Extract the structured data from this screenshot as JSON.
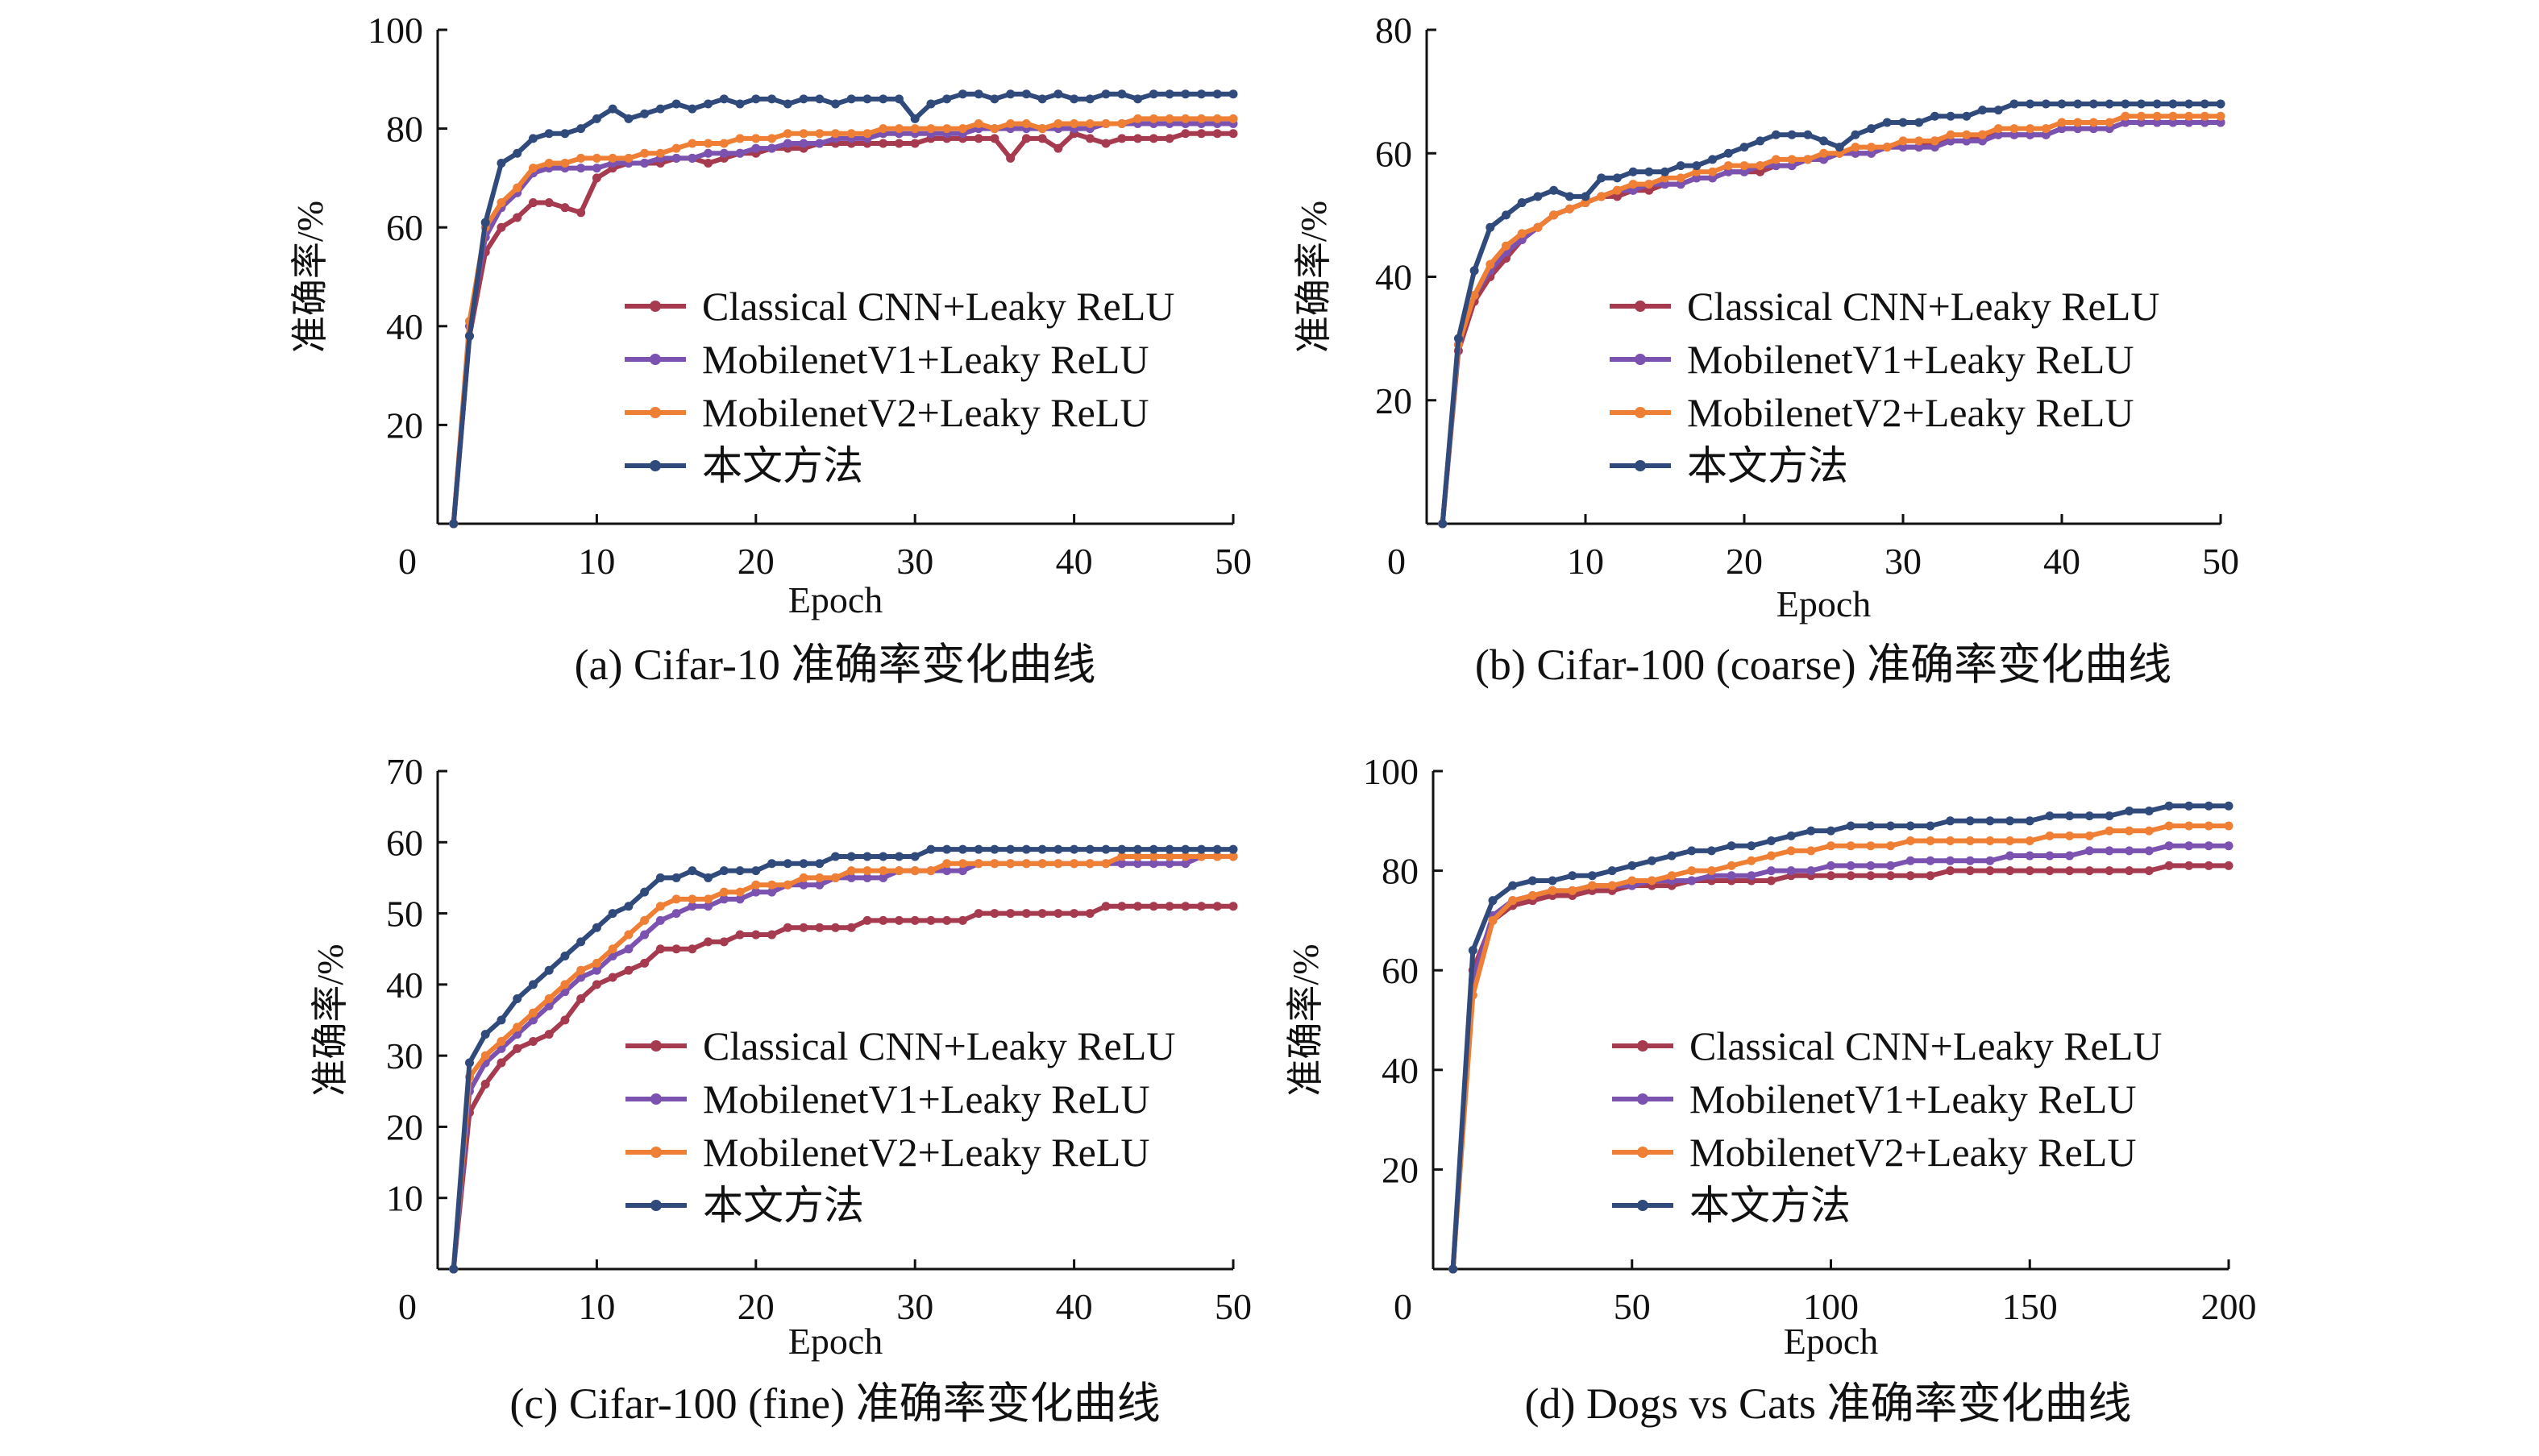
{
  "colors": {
    "classical": "#a63a4f",
    "v1": "#7b52b0",
    "v2": "#ee7f35",
    "ours": "#304a7c"
  },
  "series_names": [
    "Classical CNN+Leaky ReLU",
    "MobilenetV1+Leaky ReLU",
    "MobilenetV2+Leaky ReLU",
    "本文方法"
  ],
  "chart_data": [
    {
      "type": "line",
      "caption": "(a) Cifar-10 准确率变化曲线",
      "xlabel": "Epoch",
      "ylabel": "准确率/%",
      "xlim": [
        0,
        50
      ],
      "ylim": [
        0,
        100
      ],
      "xticks": [
        0,
        10,
        20,
        30,
        40,
        50
      ],
      "yticks": [
        20,
        40,
        60,
        80,
        100
      ],
      "x_start": 1,
      "x_step": 1,
      "legend_position": "center-right",
      "series": [
        {
          "name": "Classical CNN+Leaky ReLU",
          "key": "classical",
          "values": [
            0,
            38,
            55,
            60,
            62,
            65,
            65,
            64,
            63,
            70,
            72,
            73,
            73,
            73,
            74,
            74,
            73,
            74,
            75,
            75,
            76,
            76,
            76,
            77,
            77,
            77,
            77,
            77,
            77,
            77,
            78,
            78,
            78,
            78,
            78,
            74,
            78,
            78,
            76,
            79,
            78,
            77,
            78,
            78,
            78,
            78,
            79,
            79,
            79,
            79
          ]
        },
        {
          "name": "MobilenetV1+Leaky ReLU",
          "key": "v1",
          "values": [
            0,
            40,
            58,
            64,
            67,
            71,
            72,
            72,
            72,
            72,
            73,
            73,
            73,
            74,
            74,
            74,
            75,
            75,
            75,
            76,
            76,
            77,
            77,
            77,
            78,
            78,
            78,
            79,
            79,
            79,
            79,
            79,
            79,
            80,
            80,
            80,
            80,
            80,
            80,
            80,
            80,
            81,
            81,
            81,
            81,
            81,
            81,
            81,
            81,
            81
          ]
        },
        {
          "name": "MobilenetV2+Leaky ReLU",
          "key": "v2",
          "values": [
            0,
            41,
            60,
            65,
            68,
            72,
            73,
            73,
            74,
            74,
            74,
            74,
            75,
            75,
            76,
            77,
            77,
            77,
            78,
            78,
            78,
            79,
            79,
            79,
            79,
            79,
            79,
            80,
            80,
            80,
            80,
            80,
            80,
            81,
            80,
            81,
            81,
            80,
            81,
            81,
            81,
            81,
            81,
            82,
            82,
            82,
            82,
            82,
            82,
            82
          ]
        },
        {
          "name": "本文方法",
          "key": "ours",
          "values": [
            0,
            38,
            61,
            73,
            75,
            78,
            79,
            79,
            80,
            82,
            84,
            82,
            83,
            84,
            85,
            84,
            85,
            86,
            85,
            86,
            86,
            85,
            86,
            86,
            85,
            86,
            86,
            86,
            86,
            82,
            85,
            86,
            87,
            87,
            86,
            87,
            87,
            86,
            87,
            86,
            86,
            87,
            87,
            86,
            87,
            87,
            87,
            87,
            87,
            87
          ]
        }
      ]
    },
    {
      "type": "line",
      "caption": "(b) Cifar-100 (coarse) 准确率变化曲线",
      "xlabel": "Epoch",
      "ylabel": "准确率/%",
      "xlim": [
        0,
        50
      ],
      "ylim": [
        0,
        80
      ],
      "xticks": [
        0,
        10,
        20,
        30,
        40,
        50
      ],
      "yticks": [
        20,
        40,
        60,
        80
      ],
      "x_start": 1,
      "x_step": 1,
      "legend_position": "center-right",
      "series": [
        {
          "name": "Classical CNN+Leaky ReLU",
          "key": "classical",
          "values": [
            0,
            28,
            36,
            40,
            43,
            46,
            48,
            50,
            51,
            52,
            53,
            53,
            54,
            54,
            55,
            55,
            56,
            56,
            57,
            57,
            57,
            58,
            58,
            59,
            59,
            60,
            60,
            60,
            61,
            61,
            61,
            62,
            62,
            62,
            63,
            63,
            63,
            63,
            63,
            64,
            64,
            64,
            64,
            65,
            65,
            65,
            65,
            65,
            65,
            65
          ]
        },
        {
          "name": "MobilenetV1+Leaky ReLU",
          "key": "v1",
          "values": [
            0,
            29,
            37,
            41,
            44,
            46,
            48,
            50,
            51,
            52,
            53,
            54,
            54,
            55,
            55,
            55,
            56,
            56,
            57,
            57,
            58,
            58,
            58,
            59,
            59,
            60,
            60,
            60,
            61,
            61,
            61,
            61,
            62,
            62,
            62,
            63,
            63,
            63,
            63,
            64,
            64,
            64,
            64,
            65,
            65,
            65,
            65,
            65,
            65,
            65
          ]
        },
        {
          "name": "MobilenetV2+Leaky ReLU",
          "key": "v2",
          "values": [
            0,
            29,
            37,
            42,
            45,
            47,
            48,
            50,
            51,
            52,
            53,
            54,
            55,
            55,
            56,
            56,
            57,
            57,
            58,
            58,
            58,
            59,
            59,
            59,
            60,
            60,
            61,
            61,
            61,
            62,
            62,
            62,
            63,
            63,
            63,
            64,
            64,
            64,
            64,
            65,
            65,
            65,
            65,
            66,
            66,
            66,
            66,
            66,
            66,
            66
          ]
        },
        {
          "name": "本文方法",
          "key": "ours",
          "values": [
            0,
            30,
            41,
            48,
            50,
            52,
            53,
            54,
            53,
            53,
            56,
            56,
            57,
            57,
            57,
            58,
            58,
            59,
            60,
            61,
            62,
            63,
            63,
            63,
            62,
            61,
            63,
            64,
            65,
            65,
            65,
            66,
            66,
            66,
            67,
            67,
            68,
            68,
            68,
            68,
            68,
            68,
            68,
            68,
            68,
            68,
            68,
            68,
            68,
            68
          ]
        }
      ]
    },
    {
      "type": "line",
      "caption": "(c) Cifar-100 (fine) 准确率变化曲线",
      "xlabel": "Epoch",
      "ylabel": "准确率/%",
      "xlim": [
        0,
        50
      ],
      "ylim": [
        0,
        70
      ],
      "xticks": [
        0,
        10,
        20,
        30,
        40,
        50
      ],
      "yticks": [
        10,
        20,
        30,
        40,
        50,
        60,
        70
      ],
      "x_start": 1,
      "x_step": 1,
      "legend_position": "center-right",
      "series": [
        {
          "name": "Classical CNN+Leaky ReLU",
          "key": "classical",
          "values": [
            0,
            22,
            26,
            29,
            31,
            32,
            33,
            35,
            38,
            40,
            41,
            42,
            43,
            45,
            45,
            45,
            46,
            46,
            47,
            47,
            47,
            48,
            48,
            48,
            48,
            48,
            49,
            49,
            49,
            49,
            49,
            49,
            49,
            50,
            50,
            50,
            50,
            50,
            50,
            50,
            50,
            51,
            51,
            51,
            51,
            51,
            51,
            51,
            51,
            51
          ]
        },
        {
          "name": "MobilenetV1+Leaky ReLU",
          "key": "v1",
          "values": [
            0,
            25,
            29,
            31,
            33,
            35,
            37,
            39,
            41,
            42,
            44,
            45,
            47,
            49,
            50,
            51,
            51,
            52,
            52,
            53,
            53,
            54,
            54,
            54,
            55,
            55,
            55,
            55,
            56,
            56,
            56,
            56,
            56,
            57,
            57,
            57,
            57,
            57,
            57,
            57,
            57,
            57,
            57,
            57,
            57,
            57,
            57,
            58,
            58,
            58
          ]
        },
        {
          "name": "MobilenetV2+Leaky ReLU",
          "key": "v2",
          "values": [
            0,
            27,
            30,
            32,
            34,
            36,
            38,
            40,
            42,
            43,
            45,
            47,
            49,
            51,
            52,
            52,
            52,
            53,
            53,
            54,
            54,
            54,
            55,
            55,
            55,
            56,
            56,
            56,
            56,
            56,
            56,
            57,
            57,
            57,
            57,
            57,
            57,
            57,
            57,
            57,
            57,
            57,
            58,
            58,
            58,
            58,
            58,
            58,
            58,
            58
          ]
        },
        {
          "name": "本文方法",
          "key": "ours",
          "values": [
            0,
            29,
            33,
            35,
            38,
            40,
            42,
            44,
            46,
            48,
            50,
            51,
            53,
            55,
            55,
            56,
            55,
            56,
            56,
            56,
            57,
            57,
            57,
            57,
            58,
            58,
            58,
            58,
            58,
            58,
            59,
            59,
            59,
            59,
            59,
            59,
            59,
            59,
            59,
            59,
            59,
            59,
            59,
            59,
            59,
            59,
            59,
            59,
            59,
            59
          ]
        }
      ]
    },
    {
      "type": "line",
      "caption": "(d) Dogs vs Cats 准确率变化曲线",
      "xlabel": "Epoch",
      "ylabel": "准确率/%",
      "xlim": [
        0,
        200
      ],
      "ylim": [
        0,
        100
      ],
      "xticks": [
        0,
        50,
        100,
        150,
        200
      ],
      "yticks": [
        20,
        40,
        60,
        80,
        100
      ],
      "x_start": 5,
      "x_step": 5,
      "legend_position": "center-right",
      "series": [
        {
          "name": "Classical CNN+Leaky ReLU",
          "key": "classical",
          "values": [
            0,
            60,
            70,
            73,
            74,
            75,
            75,
            76,
            76,
            77,
            77,
            77,
            78,
            78,
            78,
            78,
            78,
            79,
            79,
            79,
            79,
            79,
            79,
            79,
            79,
            80,
            80,
            80,
            80,
            80,
            80,
            80,
            80,
            80,
            80,
            80,
            81,
            81,
            81,
            81
          ]
        },
        {
          "name": "MobilenetV1+Leaky ReLU",
          "key": "v1",
          "values": [
            0,
            58,
            71,
            74,
            75,
            76,
            76,
            77,
            77,
            77,
            78,
            78,
            78,
            79,
            79,
            79,
            80,
            80,
            80,
            81,
            81,
            81,
            81,
            82,
            82,
            82,
            82,
            82,
            83,
            83,
            83,
            83,
            84,
            84,
            84,
            84,
            85,
            85,
            85,
            85
          ]
        },
        {
          "name": "MobilenetV2+Leaky ReLU",
          "key": "v2",
          "values": [
            0,
            55,
            70,
            74,
            75,
            76,
            76,
            77,
            77,
            78,
            78,
            79,
            80,
            80,
            81,
            82,
            83,
            84,
            84,
            85,
            85,
            85,
            85,
            86,
            86,
            86,
            86,
            86,
            86,
            86,
            87,
            87,
            87,
            88,
            88,
            88,
            89,
            89,
            89,
            89
          ]
        },
        {
          "name": "本文方法",
          "key": "ours",
          "values": [
            0,
            64,
            74,
            77,
            78,
            78,
            79,
            79,
            80,
            81,
            82,
            83,
            84,
            84,
            85,
            85,
            86,
            87,
            88,
            88,
            89,
            89,
            89,
            89,
            89,
            90,
            90,
            90,
            90,
            90,
            91,
            91,
            91,
            91,
            92,
            92,
            93,
            93,
            93,
            93
          ]
        }
      ]
    }
  ]
}
